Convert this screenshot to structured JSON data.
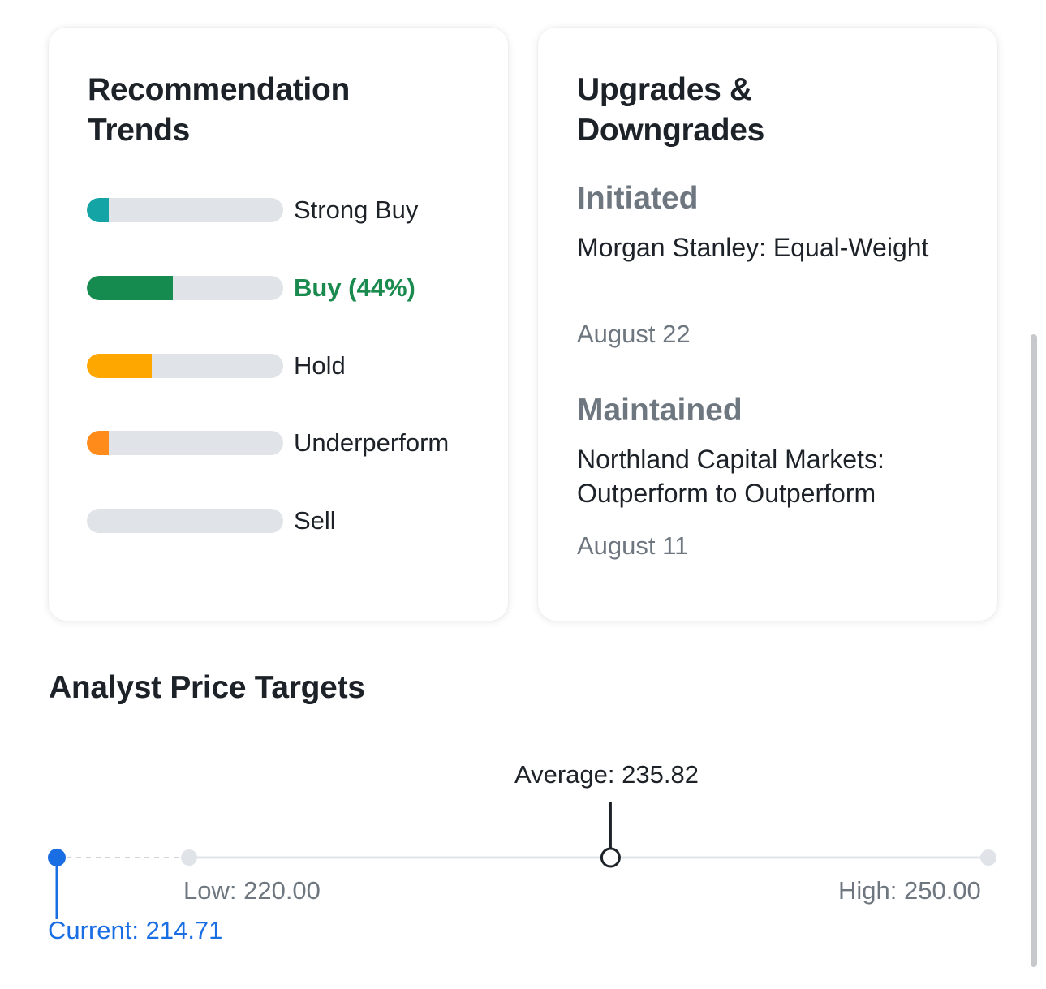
{
  "recommendation": {
    "title": "Recommendation Trends",
    "items": [
      {
        "label": "Strong Buy",
        "fraction": 0.11,
        "color": "#14a4a6",
        "active": false
      },
      {
        "label": "Buy (44%)",
        "fraction": 0.44,
        "color": "#158b4f",
        "active": true
      },
      {
        "label": "Hold",
        "fraction": 0.33,
        "color": "#fda700",
        "active": false
      },
      {
        "label": "Underperform",
        "fraction": 0.11,
        "color": "#ff8b1a",
        "active": false
      },
      {
        "label": "Sell",
        "fraction": 0.0,
        "color": "#e0e4e9",
        "active": false
      }
    ]
  },
  "upgrades": {
    "title": "Upgrades & Downgrades",
    "entries": [
      {
        "status": "Initiated",
        "text": "Morgan Stanley: Equal-Weight",
        "date": "August 22"
      },
      {
        "status": "Maintained",
        "text": "Northland Capital Markets: Outperform to Outperform",
        "date": "August 11"
      }
    ]
  },
  "price_targets": {
    "title": "Analyst Price Targets",
    "current_label": "Current: 214.71",
    "low_label": "Low: 220.00",
    "average_label": "Average: 235.82",
    "high_label": "High: 250.00",
    "current": 214.71,
    "low": 220.0,
    "average": 235.82,
    "high": 250.0,
    "current_color": "#1a6ee3"
  }
}
